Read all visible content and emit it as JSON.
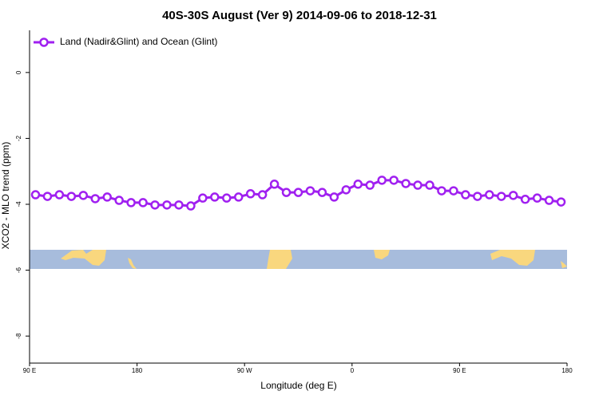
{
  "chart_data": {
    "type": "line",
    "title": "40S-30S August (Ver 9)   2014-09-06 to 2018-12-31",
    "x_label": "Longitude (deg E)",
    "y_label": "XCO2 - MLO trend (ppm)",
    "x": [
      95,
      105,
      115,
      125,
      135,
      145,
      155,
      165,
      175,
      185,
      195,
      205,
      215,
      225,
      235,
      245,
      255,
      265,
      275,
      285,
      295,
      305,
      315,
      325,
      335,
      345,
      355,
      365,
      375,
      385,
      395,
      405,
      415,
      425,
      435,
      445,
      455,
      465,
      475,
      485,
      495,
      505,
      515,
      525,
      535
    ],
    "series": [
      {
        "name": "Land (Nadir&Glint) and Ocean (Glint)",
        "color": "#a020f0",
        "values": [
          -3.71,
          -3.76,
          -3.71,
          -3.76,
          -3.73,
          -3.83,
          -3.78,
          -3.88,
          -3.95,
          -3.95,
          -4.02,
          -4.02,
          -4.02,
          -4.05,
          -3.81,
          -3.78,
          -3.81,
          -3.78,
          -3.68,
          -3.71,
          -3.39,
          -3.64,
          -3.64,
          -3.59,
          -3.64,
          -3.78,
          -3.56,
          -3.39,
          -3.42,
          -3.27,
          -3.27,
          -3.37,
          -3.42,
          -3.42,
          -3.59,
          -3.59,
          -3.71,
          -3.76,
          -3.71,
          -3.76,
          -3.73,
          -3.85,
          -3.81,
          -3.88,
          -3.93
        ]
      }
    ],
    "xlim": [
      90,
      540
    ],
    "xticks": [
      {
        "value": 90,
        "label": "90 E"
      },
      {
        "value": 180,
        "label": "180"
      },
      {
        "value": 270,
        "label": "90 W"
      },
      {
        "value": 360,
        "label": "0"
      },
      {
        "value": 450,
        "label": "90 E"
      },
      {
        "value": 540,
        "label": "180"
      }
    ],
    "ylim": [
      -8.82,
      1.28
    ],
    "yticks": [
      0,
      -2,
      -4,
      -6,
      -8
    ],
    "legend": "top-left"
  }
}
